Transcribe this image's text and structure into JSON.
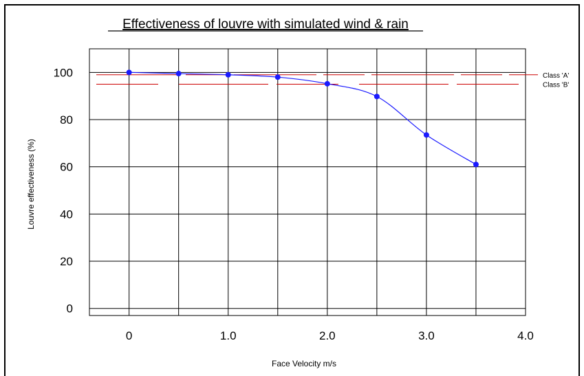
{
  "chart_data": {
    "type": "line",
    "title": "Effectiveness of louvre with simulated wind & rain",
    "xlabel": "Face Velocity m/s",
    "ylabel": "Louvre effectiveness (%)",
    "xlim": [
      -0.4,
      4.0
    ],
    "ylim": [
      -3,
      110
    ],
    "x_ticks": [
      0,
      1.0,
      2.0,
      3.0,
      4.0
    ],
    "x_tick_labels": [
      "0",
      "1.0",
      "2.0",
      "3.0",
      "4.0"
    ],
    "x_gridlines": [
      0,
      0.5,
      1.0,
      1.5,
      2.0,
      2.5,
      3.0,
      3.5
    ],
    "y_ticks": [
      0,
      20,
      40,
      60,
      80,
      100
    ],
    "y_tick_labels": [
      "0",
      "20",
      "40",
      "60",
      "80",
      "100"
    ],
    "grid": true,
    "series": [
      {
        "color": "#1a1aff",
        "x": [
          0,
          0.5,
          1.0,
          1.5,
          2.0,
          2.5,
          3.0,
          3.5
        ],
        "y": [
          100,
          99.5,
          99,
          98,
          95.2,
          89.8,
          73.5,
          61
        ]
      }
    ],
    "reference_lines": [
      {
        "label": "Class 'A'",
        "y": 99,
        "color": "#cc0000",
        "style": "dashed"
      },
      {
        "label": "Class 'B'",
        "y": 95,
        "color": "#cc0000",
        "style": "dashed"
      }
    ]
  }
}
